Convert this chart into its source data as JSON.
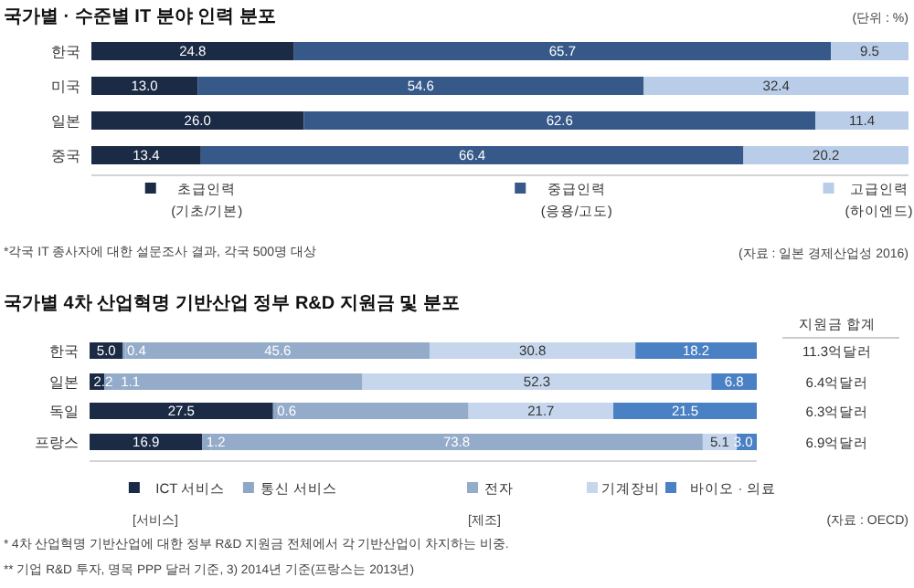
{
  "chart_data": [
    {
      "type": "bar",
      "orientation": "horizontal",
      "stacked": true,
      "title": "국가별 · 수준별 IT 분야 인력 분포",
      "categories": [
        "한국",
        "미국",
        "일본",
        "중국"
      ],
      "xlim": [
        0,
        100
      ],
      "tick_labels": "y",
      "legend": "bottom",
      "series": [
        {
          "name": "초급인력\n(기초/기본)",
          "color": "#1b2a45",
          "values": [
            24.8,
            13.0,
            26.0,
            13.4
          ],
          "value_labels": [
            "24.8",
            "13.0",
            "26.0",
            "13.4"
          ]
        },
        {
          "name": "중급인력\n(응용/고도)",
          "color": "#36598a",
          "values": [
            65.7,
            54.6,
            62.6,
            66.4
          ],
          "value_labels": [
            "65.7",
            "54.6",
            "62.6",
            "66.4"
          ]
        },
        {
          "name": "고급인력\n(하이엔드)",
          "color": "#b9cde8",
          "values": [
            9.5,
            32.4,
            11.4,
            20.2
          ],
          "value_labels": [
            "9.5",
            "32.4",
            "11.4",
            "20.2"
          ]
        }
      ],
      "annotations": [
        "(단위 : %)",
        "*각국 IT 종사자에 대한 설문조사 결과, 각국 500명 대상",
        "(자료 : 일본 경제산업성 2016)"
      ]
    },
    {
      "type": "bar",
      "orientation": "horizontal",
      "stacked": true,
      "title": "국가별 4차 산업혁명 기반산업 정부 R&D 지원금 및 분포",
      "categories": [
        "한국",
        "일본",
        "독일",
        "프랑스"
      ],
      "xlim": [
        0,
        100
      ],
      "tick_labels": "y",
      "legend": "bottom",
      "series": [
        {
          "name": "ICT 서비스",
          "color": "#1b2a45",
          "values": [
            5.0,
            2.2,
            27.5,
            16.9
          ],
          "value_labels": [
            "5.0",
            "2.2",
            "27.5",
            "16.9"
          ]
        },
        {
          "name": "통신 서비스",
          "color": "#8ea7c7",
          "values": [
            0.4,
            1.1,
            0.6,
            1.2
          ],
          "value_labels": [
            "0.4",
            "1.1",
            "0.6",
            "1.2"
          ]
        },
        {
          "name": "전자",
          "color": "#94abca",
          "values": [
            45.6,
            37.6,
            28.7,
            73.8
          ],
          "value_labels": [
            "45.6",
            null,
            null,
            "73.8"
          ]
        },
        {
          "name": "기계장비",
          "color": "#c6d6ec",
          "values": [
            30.8,
            52.3,
            21.7,
            5.1
          ],
          "value_labels": [
            "30.8",
            "52.3",
            "21.7",
            "5.1"
          ]
        },
        {
          "name": "바이오 · 의료",
          "color": "#4a80c4",
          "values": [
            18.2,
            6.8,
            21.5,
            3.0
          ],
          "value_labels": [
            "18.2",
            "6.8",
            "21.5",
            "3.0"
          ]
        }
      ],
      "annotations": [
        "[서비스]",
        "[제조]",
        "(자료 : OECD)",
        "* 4차 산업혁명 기반산업에 대한 정부 R&D 지원금 전체에서 각 기반산업이 차지하는 비중.",
        "** 기업 R&D 투자, 명목 PPP 달러 기준, 3) 2014년 기준(프랑스는 2013년)"
      ]
    },
    {
      "type": "other",
      "title": "지원금 합계",
      "annotations": [
        "11.3억달러",
        "6.4억달러",
        "6.3억달러",
        "6.9억달러"
      ]
    }
  ]
}
